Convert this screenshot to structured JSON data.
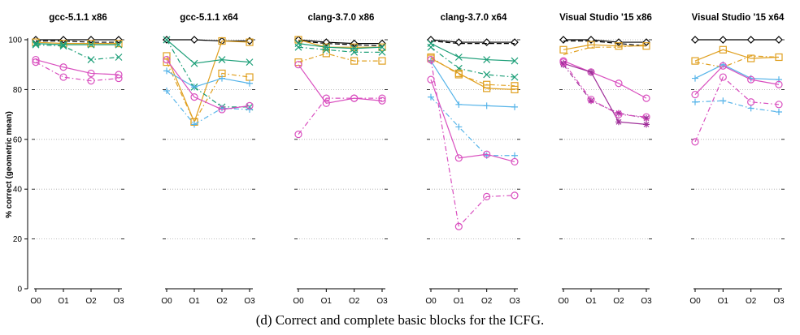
{
  "caption": "(d) Correct and complete basic blocks for the ICFG.",
  "colors": {
    "black": "#000000",
    "orange": "#e0a020",
    "green": "#1b9e77",
    "magenta": "#d94fbf",
    "sky": "#56b4e9",
    "purple": "#a0309a",
    "grid": "#aaaaaa"
  },
  "chart_data": {
    "type": "line",
    "ylabel": "% correct (geometric mean)",
    "ylim": [
      0,
      100
    ],
    "yticks": [
      "0",
      "20",
      "40",
      "60",
      "80",
      "100"
    ],
    "categories": [
      "O0",
      "O1",
      "O2",
      "O3"
    ],
    "grid": "horizontal dotted",
    "panels": [
      {
        "title": "gcc-5.1.1 x86",
        "series": [
          {
            "color": "#000000",
            "marker": "diamond",
            "dash": "solid",
            "values": [
              100,
              100,
              100,
              100
            ]
          },
          {
            "color": "#000000",
            "marker": "none",
            "dash": "dash",
            "values": [
              99.5,
              99.5,
              99,
              99
            ]
          },
          {
            "color": "#e0a020",
            "marker": "square",
            "dash": "solid",
            "values": [
              99,
              98.5,
              98.5,
              98.5
            ]
          },
          {
            "color": "#1b9e77",
            "marker": "x",
            "dash": "solid",
            "values": [
              98.5,
              98,
              98,
              98
            ]
          },
          {
            "color": "#1b9e77",
            "marker": "x",
            "dash": "dashdot",
            "values": [
              98,
              97.5,
              92,
              93
            ]
          },
          {
            "color": "#d94fbf",
            "marker": "circle",
            "dash": "solid",
            "values": [
              92,
              89,
              86.5,
              86
            ]
          },
          {
            "color": "#d94fbf",
            "marker": "circle",
            "dash": "dashdot",
            "values": [
              91,
              85,
              83.5,
              84.5
            ]
          }
        ]
      },
      {
        "title": "gcc-5.1.1 x64",
        "series": [
          {
            "color": "#000000",
            "marker": "diamond",
            "dash": "solid",
            "values": [
              100,
              100,
              99.5,
              99.5
            ]
          },
          {
            "color": "#e0a020",
            "marker": "square",
            "dash": "solid",
            "values": [
              93.5,
              67,
              99.5,
              99
            ]
          },
          {
            "color": "#e0a020",
            "marker": "square",
            "dash": "dashdot",
            "values": [
              91,
              67,
              86.5,
              85
            ]
          },
          {
            "color": "#1b9e77",
            "marker": "x",
            "dash": "solid",
            "values": [
              100,
              90.5,
              92,
              91
            ]
          },
          {
            "color": "#1b9e77",
            "marker": "x",
            "dash": "dashdot",
            "values": [
              100,
              81,
              73,
              73
            ]
          },
          {
            "color": "#56b4e9",
            "marker": "plus",
            "dash": "solid",
            "values": [
              87.5,
              81,
              84.5,
              82.5
            ]
          },
          {
            "color": "#56b4e9",
            "marker": "plus",
            "dash": "dashdot",
            "values": [
              79.5,
              66,
              72.5,
              72
            ]
          },
          {
            "color": "#d94fbf",
            "marker": "circle",
            "dash": "solid",
            "values": [
              92,
              77,
              72,
              73.5
            ]
          }
        ]
      },
      {
        "title": "clang-3.7.0 x86",
        "series": [
          {
            "color": "#000000",
            "marker": "diamond",
            "dash": "solid",
            "values": [
              100,
              99,
              98.5,
              98.5
            ]
          },
          {
            "color": "#000000",
            "marker": "none",
            "dash": "dash",
            "values": [
              99.5,
              98.5,
              98,
              97.5
            ]
          },
          {
            "color": "#e0a020",
            "marker": "square",
            "dash": "solid",
            "values": [
              100,
              97,
              97,
              97
            ]
          },
          {
            "color": "#e0a020",
            "marker": "square",
            "dash": "dashdot",
            "values": [
              91,
              94.5,
              91.5,
              91.5
            ]
          },
          {
            "color": "#1b9e77",
            "marker": "x",
            "dash": "solid",
            "values": [
              98.5,
              97,
              96.5,
              97
            ]
          },
          {
            "color": "#1b9e77",
            "marker": "x",
            "dash": "dashdot",
            "values": [
              97,
              96,
              95,
              95
            ]
          },
          {
            "color": "#d94fbf",
            "marker": "circle",
            "dash": "solid",
            "values": [
              90,
              74.5,
              76.5,
              75.5
            ]
          },
          {
            "color": "#d94fbf",
            "marker": "circle",
            "dash": "dashdot",
            "values": [
              62,
              76.5,
              76.5,
              76.5
            ]
          }
        ]
      },
      {
        "title": "clang-3.7.0 x64",
        "series": [
          {
            "color": "#000000",
            "marker": "diamond",
            "dash": "solid",
            "values": [
              100,
              99,
              99,
              99
            ]
          },
          {
            "color": "#000000",
            "marker": "none",
            "dash": "dash",
            "values": [
              99.5,
              98.5,
              98.5,
              98.5
            ]
          },
          {
            "color": "#1b9e77",
            "marker": "x",
            "dash": "solid",
            "values": [
              98.5,
              93,
              92,
              91.5
            ]
          },
          {
            "color": "#1b9e77",
            "marker": "x",
            "dash": "dashdot",
            "values": [
              97,
              88.5,
              86,
              85
            ]
          },
          {
            "color": "#e0a020",
            "marker": "square",
            "dash": "solid",
            "values": [
              92.5,
              86.5,
              80.5,
              80
            ]
          },
          {
            "color": "#e0a020",
            "marker": "square",
            "dash": "dashdot",
            "values": [
              93,
              86,
              82,
              81.5
            ]
          },
          {
            "color": "#56b4e9",
            "marker": "plus",
            "dash": "solid",
            "values": [
              91.5,
              74,
              73.5,
              73
            ]
          },
          {
            "color": "#56b4e9",
            "marker": "plus",
            "dash": "dashdot",
            "values": [
              77,
              65,
              53.5,
              53.5
            ]
          },
          {
            "color": "#d94fbf",
            "marker": "circle",
            "dash": "solid",
            "values": [
              84,
              52.5,
              54,
              51
            ]
          },
          {
            "color": "#d94fbf",
            "marker": "circle",
            "dash": "dashdot",
            "values": [
              92,
              25,
              37,
              37.5
            ]
          }
        ]
      },
      {
        "title": "Visual Studio '15 x86",
        "series": [
          {
            "color": "#000000",
            "marker": "diamond",
            "dash": "solid",
            "values": [
              100,
              100,
              99,
              99
            ]
          },
          {
            "color": "#000000",
            "marker": "none",
            "dash": "dash",
            "values": [
              99.5,
              99.5,
              98.5,
              97.5
            ]
          },
          {
            "color": "#e0a020",
            "marker": "square",
            "dash": "solid",
            "values": [
              96,
              98,
              97.5,
              97.5
            ]
          },
          {
            "color": "#e0a020",
            "marker": "none",
            "dash": "dashdot",
            "values": [
              94,
              97,
              97,
              98
            ]
          },
          {
            "color": "#d94fbf",
            "marker": "circle",
            "dash": "solid",
            "values": [
              91.5,
              87,
              82.5,
              76.5
            ]
          },
          {
            "color": "#a0309a",
            "marker": "star",
            "dash": "solid",
            "values": [
              90.5,
              87,
              67,
              66
            ]
          },
          {
            "color": "#a0309a",
            "marker": "star",
            "dash": "dashdot",
            "values": [
              90,
              75.5,
              70.5,
              68.5
            ]
          },
          {
            "color": "#d94fbf",
            "marker": "circle",
            "dash": "dashdot",
            "values": [
              91,
              76,
              70,
              69
            ]
          }
        ]
      },
      {
        "title": "Visual Studio '15 x64",
        "series": [
          {
            "color": "#000000",
            "marker": "diamond",
            "dash": "solid",
            "values": [
              100,
              100,
              100,
              100
            ]
          },
          {
            "color": "#e0a020",
            "marker": "square",
            "dash": "solid",
            "values": [
              91.5,
              96,
              92.5,
              93
            ]
          },
          {
            "color": "#e0a020",
            "marker": "none",
            "dash": "dashdot",
            "values": [
              91,
              89,
              93.5,
              93
            ]
          },
          {
            "color": "#56b4e9",
            "marker": "plus",
            "dash": "solid",
            "values": [
              84.5,
              90,
              84.5,
              84
            ]
          },
          {
            "color": "#56b4e9",
            "marker": "plus",
            "dash": "dashdot",
            "values": [
              75,
              75.5,
              72.5,
              71
            ]
          },
          {
            "color": "#d94fbf",
            "marker": "circle",
            "dash": "solid",
            "values": [
              78,
              89.5,
              84,
              82
            ]
          },
          {
            "color": "#d94fbf",
            "marker": "circle",
            "dash": "dashdot",
            "values": [
              59,
              85,
              75,
              74
            ]
          }
        ]
      }
    ]
  }
}
